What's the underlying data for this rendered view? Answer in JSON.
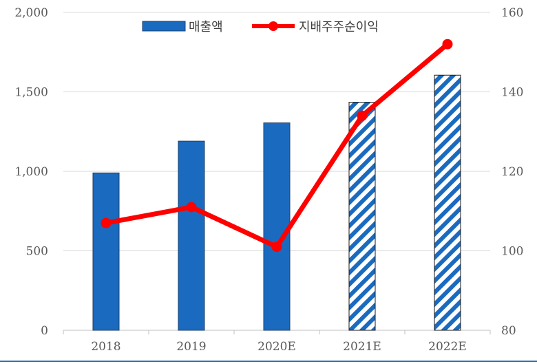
{
  "chart_data": {
    "type": "bar",
    "categories": [
      "2018",
      "2019",
      "2020E",
      "2021E",
      "2022E"
    ],
    "series": [
      {
        "name": "매출액",
        "type": "bar",
        "axis": "left",
        "values": [
          990,
          1190,
          1305,
          1435,
          1605
        ],
        "color": "#1a6bbf",
        "forecast_pattern": [
          "solid",
          "solid",
          "solid",
          "hatched",
          "hatched"
        ]
      },
      {
        "name": "지배주주순이익",
        "type": "line",
        "axis": "right",
        "values": [
          107,
          111,
          101,
          134,
          152
        ],
        "color": "#ff0000"
      }
    ],
    "ylim_left": [
      0,
      2000
    ],
    "yticks_left": [
      "0",
      "500",
      "1,000",
      "1,500",
      "2,000"
    ],
    "ylim_right": [
      80,
      160
    ],
    "yticks_right": [
      "80",
      "100",
      "120",
      "140",
      "160"
    ],
    "grid": true,
    "legend_position": "top-center",
    "title": "",
    "xlabel": "",
    "ylabel": ""
  }
}
